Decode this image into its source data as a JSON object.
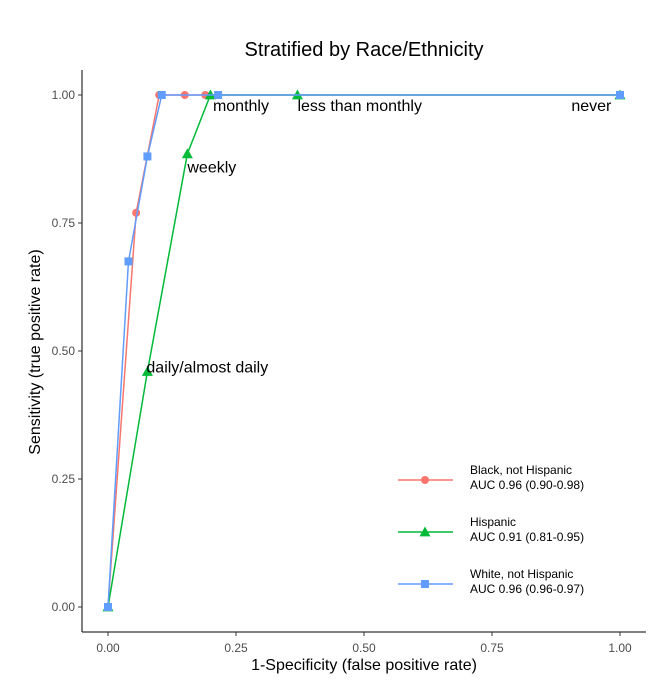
{
  "chart_data": {
    "type": "line",
    "title": "Stratified by Race/Ethnicity",
    "xlabel": "1-Specificity (false positive rate)",
    "ylabel": "Sensitivity (true positive rate)",
    "xlim": [
      0,
      1
    ],
    "ylim": [
      0,
      1
    ],
    "x_ticks": [
      "0.00",
      "0.25",
      "0.50",
      "0.75",
      "1.00"
    ],
    "y_ticks": [
      "0.00",
      "0.25",
      "0.50",
      "0.75",
      "1.00"
    ],
    "grid": false,
    "legend_position": "bottom-right",
    "series": [
      {
        "name": "Black, not Hispanic",
        "auc": "AUC 0.96 (0.90-0.98)",
        "color": "#F8766D",
        "marker": "circle",
        "x": [
          0,
          0.055,
          0.1,
          0.15,
          0.19,
          1.0
        ],
        "y": [
          0,
          0.77,
          1.0,
          1.0,
          1.0,
          1.0
        ]
      },
      {
        "name": "Hispanic",
        "auc": "AUC 0.91 (0.81-0.95)",
        "color": "#00BA38",
        "marker": "triangle",
        "x": [
          0,
          0.077,
          0.155,
          0.2,
          0.37,
          1.0
        ],
        "y": [
          0,
          0.46,
          0.885,
          1.0,
          1.0,
          1.0
        ]
      },
      {
        "name": "White, not Hispanic",
        "auc": "AUC 0.96 (0.96-0.97)",
        "color": "#619CFF",
        "marker": "square",
        "x": [
          0,
          0.04,
          0.077,
          0.105,
          0.215,
          1.0
        ],
        "y": [
          0,
          0.675,
          0.88,
          1.0,
          1.0,
          1.0
        ]
      }
    ],
    "annotations": [
      {
        "text": "daily/almost daily",
        "x": 0.075,
        "y": 0.47
      },
      {
        "text": "weekly",
        "x": 0.155,
        "y": 0.86
      },
      {
        "text": "monthly",
        "x": 0.205,
        "y": 0.98
      },
      {
        "text": "less than monthly",
        "x": 0.37,
        "y": 0.98
      },
      {
        "text": "never",
        "x": 0.905,
        "y": 0.98
      }
    ]
  }
}
